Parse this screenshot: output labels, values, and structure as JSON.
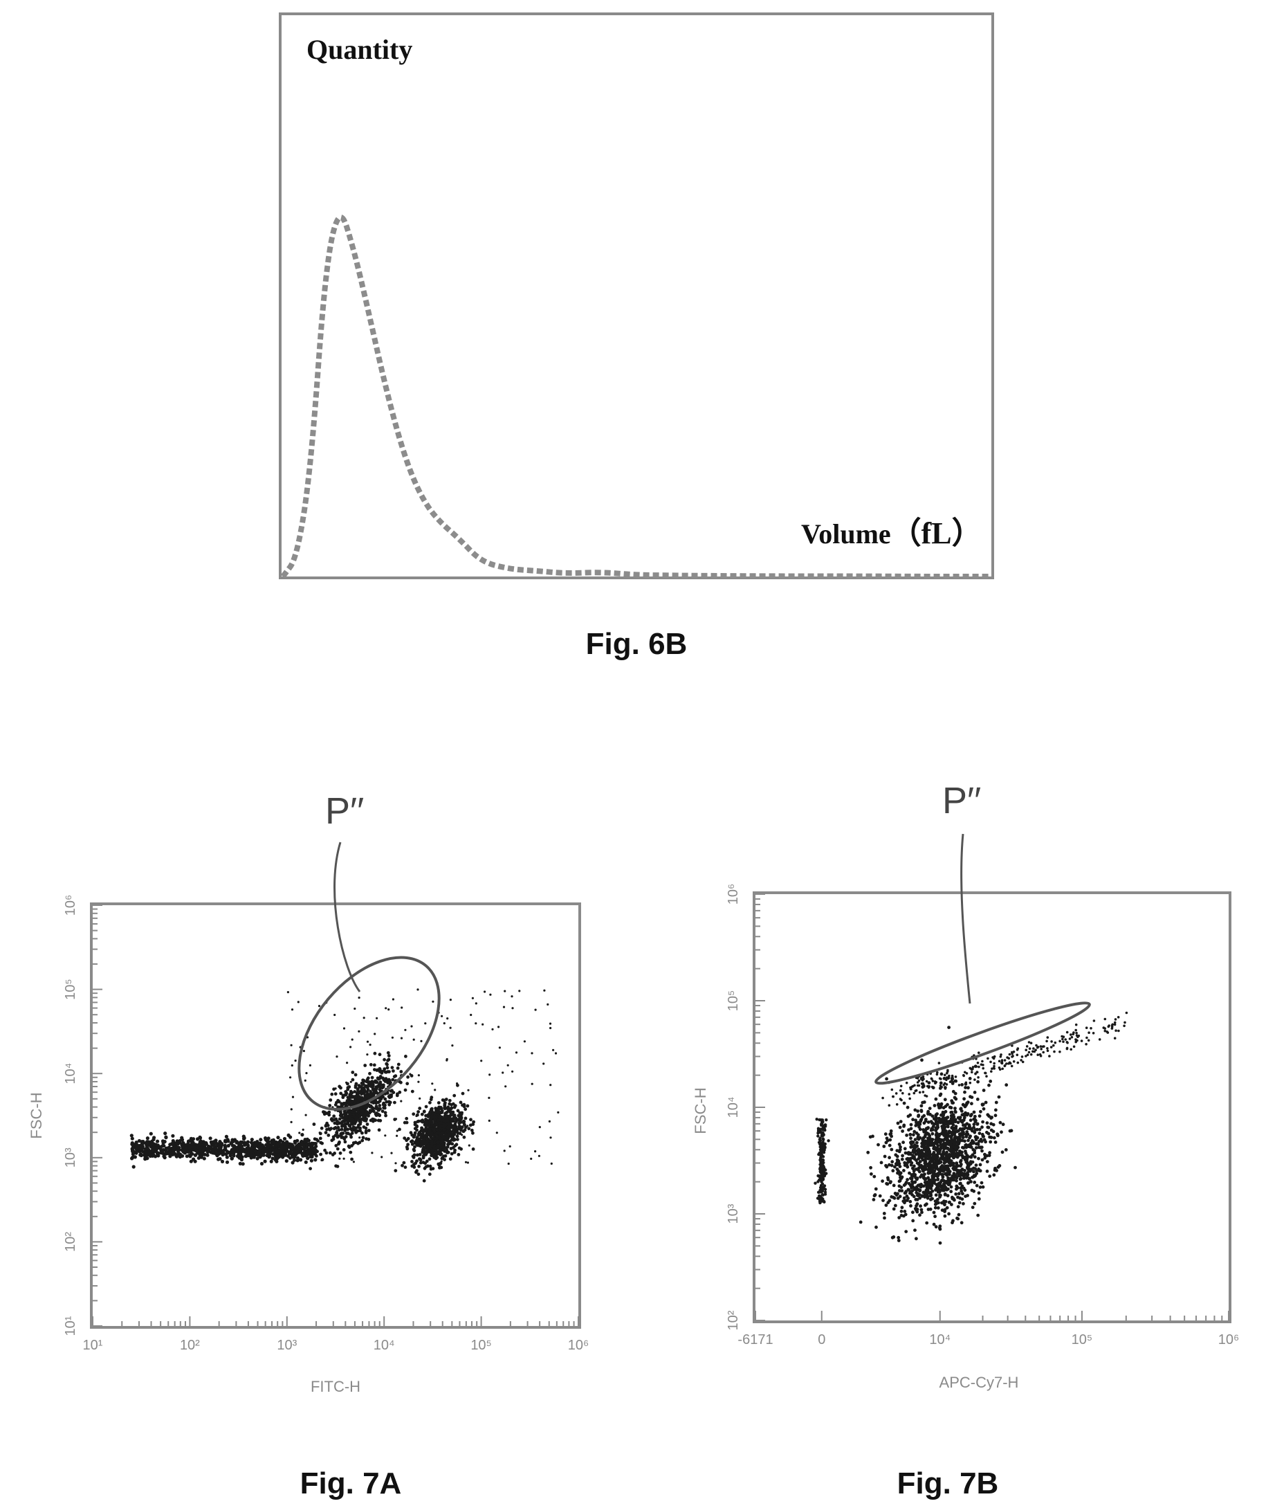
{
  "chart_data": [
    {
      "type": "line",
      "caption": "Fig. 6B",
      "ylabel": "Quantity",
      "xlabel": "Volume",
      "xunit": "（fL）",
      "grid": false,
      "legend": "none",
      "line_style": "dashed",
      "series": [
        {
          "x": [
            0,
            2,
            4,
            6,
            8,
            10,
            12,
            14,
            16,
            18,
            20,
            22,
            25,
            28,
            32,
            36,
            40,
            45,
            50,
            55,
            60,
            70,
            80,
            90,
            100
          ],
          "y": [
            0.0,
            0.05,
            0.3,
            0.83,
            1.0,
            0.88,
            0.72,
            0.55,
            0.4,
            0.28,
            0.2,
            0.15,
            0.1,
            0.04,
            0.02,
            0.015,
            0.008,
            0.012,
            0.004,
            0.003,
            0.002,
            0.001,
            0.001,
            0.0,
            0.0
          ]
        }
      ]
    },
    {
      "type": "scatter",
      "caption": "Fig. 7A",
      "xlabel": "FITC-H",
      "ylabel": "FSC-H",
      "x_scale": "log",
      "y_scale": "log",
      "x_ticks": [
        "10¹",
        "10²",
        "10³",
        "10⁴",
        "10⁵",
        "10⁶"
      ],
      "y_ticks": [
        "10¹",
        "10²",
        "10³",
        "10⁴",
        "10⁵",
        "10⁶"
      ],
      "xlim": [
        10,
        1000000
      ],
      "ylim": [
        10,
        1000000
      ],
      "gate": {
        "label": "P′′",
        "shape": "ellipse",
        "center": [
          7000,
          30000
        ],
        "log_half_axes": [
          0.55,
          1.05
        ],
        "rotation_deg": 40
      },
      "populations": [
        {
          "shape": "band",
          "x_log_range": [
            1.4,
            3.3
          ],
          "y_log": 3.1,
          "y_log_spread": 0.06,
          "count": 900
        },
        {
          "shape": "cluster",
          "x_log": 3.75,
          "y_log": 3.6,
          "sx": 0.18,
          "sy": 0.25,
          "tilt": 0.6,
          "count": 700
        },
        {
          "shape": "cluster",
          "x_log": 4.55,
          "y_log": 3.3,
          "sx": 0.13,
          "sy": 0.2,
          "tilt": 0.3,
          "count": 800
        },
        {
          "shape": "scatter",
          "x_log_range": [
            3.0,
            5.8
          ],
          "y_log_range": [
            2.9,
            5.0
          ],
          "count": 160
        }
      ]
    },
    {
      "type": "scatter",
      "caption": "Fig. 7B",
      "xlabel": "APC-Cy7-H",
      "ylabel": "FSC-H",
      "x_scale": "biexponential",
      "y_scale": "log",
      "x_ticks": [
        "-6171",
        "0",
        "10⁴",
        "10⁵",
        "10⁶"
      ],
      "y_ticks": [
        "10²",
        "10³",
        "10⁴",
        "10⁵",
        "10⁶"
      ],
      "ylim": [
        100,
        1000000
      ],
      "gate": {
        "label": "P′′",
        "shape": "ellipse",
        "center": [
          20000,
          40000
        ],
        "rotation_deg": -20
      },
      "populations": [
        {
          "shape": "column",
          "x": 0,
          "y_log_range": [
            3.1,
            3.9
          ],
          "count": 200
        },
        {
          "shape": "cluster",
          "x_frac": 0.39,
          "y_log": 3.55,
          "sx": 0.05,
          "sy": 0.28,
          "count": 1400
        },
        {
          "shape": "diagonal",
          "from": [
            0.28,
            4.1
          ],
          "to": [
            0.78,
            4.8
          ],
          "count": 260
        }
      ]
    }
  ]
}
